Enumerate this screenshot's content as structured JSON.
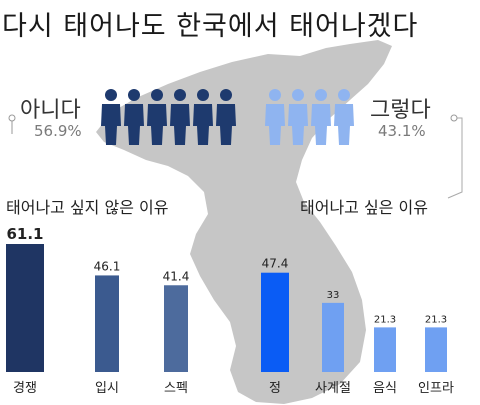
{
  "title": "다시 태어나도 한국에서 태어나겠다",
  "survey": {
    "no": {
      "label": "아니다",
      "percent": "56.9%",
      "color": "#1e3a6e"
    },
    "yes": {
      "label": "그렇다",
      "percent": "43.1%",
      "color": "#8fb4f0"
    }
  },
  "chart_data": [
    {
      "type": "bar",
      "title": "태어나고 싶지 않은 이유",
      "categories": [
        "경쟁",
        "입시",
        "스펙"
      ],
      "values": [
        61.1,
        46.1,
        41.4
      ],
      "value_labels": [
        "61.1",
        "46.1",
        "41.4"
      ],
      "colors": [
        "#1f3563",
        "#3b5a8f",
        "#4d6b9d"
      ],
      "ylim": [
        0,
        61.1
      ]
    },
    {
      "type": "bar",
      "title": "태어나고 싶은 이유",
      "categories": [
        "정",
        "사계절",
        "음식",
        "인프라"
      ],
      "values": [
        47.4,
        33,
        21.3,
        21.3
      ],
      "value_labels": [
        "47.4",
        "33",
        "21.3",
        "21.3"
      ],
      "colors": [
        "#0a5cf5",
        "#6fa0f2",
        "#6fa0f2",
        "#6fa0f2"
      ],
      "ylim": [
        0,
        61.1
      ]
    }
  ]
}
